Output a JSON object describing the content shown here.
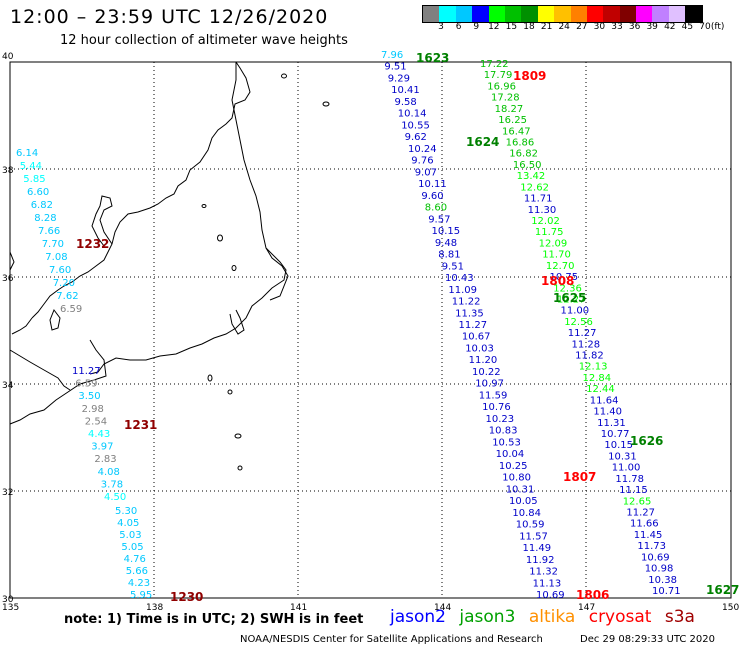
{
  "header": {
    "title": "12:00 – 23:59 UTC 12/26/2020",
    "subtitle": "12 hour collection of altimeter wave heights"
  },
  "colorbar": {
    "colors": [
      "#808080",
      "#00ffff",
      "#00c8ff",
      "#0000ff",
      "#00ff00",
      "#00c000",
      "#009000",
      "#ffff00",
      "#ffc000",
      "#ff8000",
      "#ff0000",
      "#c00000",
      "#800000",
      "#ff00ff",
      "#c080ff",
      "#e0c0ff",
      "#000000"
    ],
    "labels": [
      "3",
      "6",
      "9",
      "12",
      "15",
      "18",
      "21",
      "24",
      "27",
      "30",
      "33",
      "36",
      "39",
      "42",
      "45",
      "70",
      "(ft)"
    ]
  },
  "axes": {
    "x_ticks": [
      "135",
      "138",
      "141",
      "144",
      "147",
      "150"
    ],
    "y_ticks": [
      "40",
      "38",
      "36",
      "34",
      "32",
      "30"
    ]
  },
  "tracks": {
    "track_1232": {
      "time": "1232",
      "time_color": "#900000",
      "values": [
        "6.14",
        "5.44",
        "5.85",
        "6.60",
        "6.82",
        "8.28",
        "7.66",
        "7.70",
        "7.08",
        "7.60",
        "7.20",
        "7.62",
        "6.59"
      ],
      "colors": [
        "#00c8ff",
        "#00ffff",
        "#00ffff",
        "#00c8ff",
        "#00c8ff",
        "#00c8ff",
        "#00c8ff",
        "#00c8ff",
        "#00c8ff",
        "#00c8ff",
        "#00c8ff",
        "#00c8ff",
        "#808080"
      ]
    },
    "track_1231": {
      "time": "1231",
      "time_color": "#900000",
      "values": [
        "11.27",
        "6.59",
        "3.50",
        "2.98",
        "2.54",
        "4.43",
        "3.97",
        "2.83",
        "4.08",
        "3.78",
        "4.50"
      ],
      "colors": [
        "#0000c8",
        "#808080",
        "#00c8ff",
        "#808080",
        "#808080",
        "#00ffff",
        "#00c8ff",
        "#808080",
        "#00c8ff",
        "#00c8ff",
        "#00ffff"
      ]
    },
    "track_1230": {
      "time": "1230",
      "time_color": "#900000",
      "values": [
        "5.30",
        "4.05",
        "5.03",
        "5.05",
        "4.76",
        "5.66",
        "4.23",
        "5.95"
      ],
      "colors": [
        "#00c8ff",
        "#00c8ff",
        "#00c8ff",
        "#00c8ff",
        "#00c8ff",
        "#00c8ff",
        "#00c8ff",
        "#00c8ff"
      ]
    },
    "track_1623": {
      "time": "1623",
      "time_color": "#008000",
      "values": [
        "7.96",
        "9.51",
        "9.29",
        "10.41",
        "9.58",
        "10.14",
        "10.55",
        "9.62",
        "10.24",
        "9.76",
        "9.07",
        "10.11",
        "9.60",
        "8.60",
        "9.57",
        "10.15",
        "9.48",
        "8.81",
        "9.51",
        "10.43",
        "11.09",
        "11.22",
        "11.35",
        "11.27",
        "10.67",
        "10.03",
        "11.20",
        "10.22",
        "10.97",
        "11.59",
        "10.76",
        "10.23",
        "10.83",
        "10.53",
        "10.04",
        "10.25",
        "10.80",
        "10.31",
        "10.05",
        "10.84",
        "10.59",
        "11.57",
        "11.49",
        "11.92",
        "11.32",
        "11.13",
        "10.69"
      ],
      "colors": [
        "#00c8ff",
        "#0000c8",
        "#0000c8",
        "#0000c8",
        "#0000c8",
        "#0000c8",
        "#0000c8",
        "#0000c8",
        "#0000c8",
        "#0000c8",
        "#0000c8",
        "#0000c8",
        "#0000c8",
        "#00c000",
        "#0000c8",
        "#0000c8",
        "#0000c8",
        "#0000c8",
        "#0000c8",
        "#0000c8",
        "#0000c8",
        "#0000c8",
        "#0000c8",
        "#0000c8",
        "#0000c8",
        "#0000c8",
        "#0000c8",
        "#0000c8",
        "#0000c8",
        "#0000c8",
        "#0000c8",
        "#0000c8",
        "#0000c8",
        "#0000c8",
        "#0000c8",
        "#0000c8",
        "#0000c8",
        "#0000c8",
        "#0000c8",
        "#0000c8",
        "#0000c8",
        "#0000c8",
        "#0000c8",
        "#0000c8",
        "#0000c8",
        "#0000c8",
        "#0000c8"
      ]
    },
    "track_1624": {
      "time": "1624",
      "time_color": "#008000",
      "values": [
        "17.22",
        "17.79",
        "16.96",
        "17.28",
        "18.27",
        "16.25",
        "16.47",
        "16.86",
        "16.82",
        "16.50",
        "13.42",
        "12.62",
        "11.71",
        "11.30",
        "12.02",
        "11.75",
        "12.09",
        "11.70",
        "12.70",
        "10.75",
        "12.36",
        "12.27",
        "11.00",
        "12.56",
        "11.27",
        "11.28",
        "11.82",
        "12.13",
        "12.84",
        "12.44",
        "11.64",
        "11.40",
        "11.31",
        "10.77",
        "10.15",
        "10.31",
        "11.00",
        "11.78",
        "11.15",
        "12.65",
        "11.27",
        "11.66",
        "11.45",
        "11.73",
        "10.69",
        "10.98",
        "10.38",
        "10.71"
      ],
      "colors": [
        "#00c000",
        "#00c000",
        "#00c000",
        "#00c000",
        "#00c000",
        "#00c000",
        "#00c000",
        "#00c000",
        "#00c000",
        "#00c000",
        "#00ff00",
        "#00ff00",
        "#0000c8",
        "#0000c8",
        "#00ff00",
        "#00ff00",
        "#00ff00",
        "#00ff00",
        "#00ff00",
        "#0000c8",
        "#00ff00",
        "#00ff00",
        "#0000c8",
        "#00ff00",
        "#0000c8",
        "#0000c8",
        "#0000c8",
        "#00ff00",
        "#00ff00",
        "#00ff00",
        "#0000c8",
        "#0000c8",
        "#0000c8",
        "#0000c8",
        "#0000c8",
        "#0000c8",
        "#0000c8",
        "#0000c8",
        "#0000c8",
        "#00ff00",
        "#0000c8",
        "#0000c8",
        "#0000c8",
        "#0000c8",
        "#0000c8",
        "#0000c8",
        "#0000c8",
        "#0000c8"
      ]
    },
    "extra_times": [
      {
        "time": "1809",
        "color": "#ff0000"
      },
      {
        "time": "1808",
        "color": "#ff0000"
      },
      {
        "time": "1625",
        "color": "#008000"
      },
      {
        "time": "1626",
        "color": "#008000"
      },
      {
        "time": "1807",
        "color": "#ff0000"
      },
      {
        "time": "1806",
        "color": "#ff0000"
      },
      {
        "time": "1627",
        "color": "#008000"
      }
    ]
  },
  "note": "note: 1) Time is in UTC; 2) SWH is in feet",
  "legend": [
    {
      "label": "jason2",
      "color": "#0000ff"
    },
    {
      "label": "jason3",
      "color": "#00a000"
    },
    {
      "label": "altika",
      "color": "#ff9000"
    },
    {
      "label": "cryosat",
      "color": "#ff0000"
    },
    {
      "label": "s3a",
      "color": "#a00000"
    }
  ],
  "footer": {
    "credit": "NOAA/NESDIS Center for Satellite Applications and Research",
    "timestamp": "Dec 29 08:29:33 UTC 2020"
  }
}
